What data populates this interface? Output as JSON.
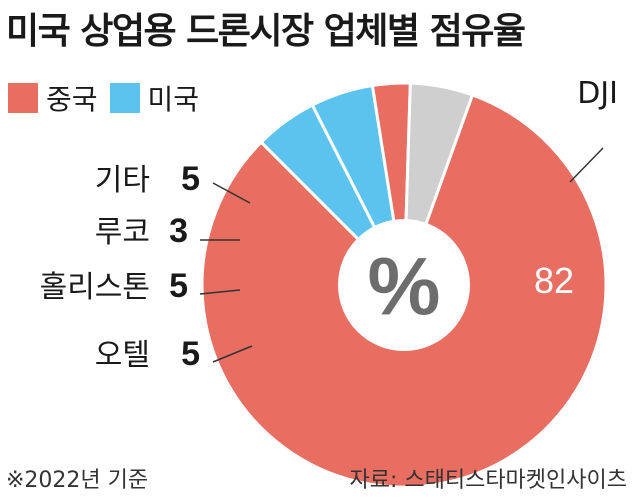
{
  "title": "미국 상업용 드론시장 업체별 점유율",
  "legend": [
    {
      "label": "중국",
      "color": "#e86e62"
    },
    {
      "label": "미국",
      "color": "#5bc3ee"
    }
  ],
  "center_label": "%",
  "footnote": "※2022년 기준",
  "source": "자료: 스태티스타마켓인사이츠",
  "chart_data": {
    "type": "pie",
    "title": "미국 상업용 드론시장 업체별 점유율",
    "unit": "%",
    "donut": true,
    "slices": [
      {
        "label": "DJI",
        "value": 82,
        "group": "중국",
        "color": "#e86e62"
      },
      {
        "label": "오텔",
        "value": 5,
        "group": "미국",
        "color": "#5bc3ee"
      },
      {
        "label": "홀리스톤",
        "value": 5,
        "group": "미국",
        "color": "#5bc3ee"
      },
      {
        "label": "루코",
        "value": 3,
        "group": "중국",
        "color": "#e86e62"
      },
      {
        "label": "기타",
        "value": 5,
        "group": "기타",
        "color": "#cfcfcf"
      }
    ]
  }
}
